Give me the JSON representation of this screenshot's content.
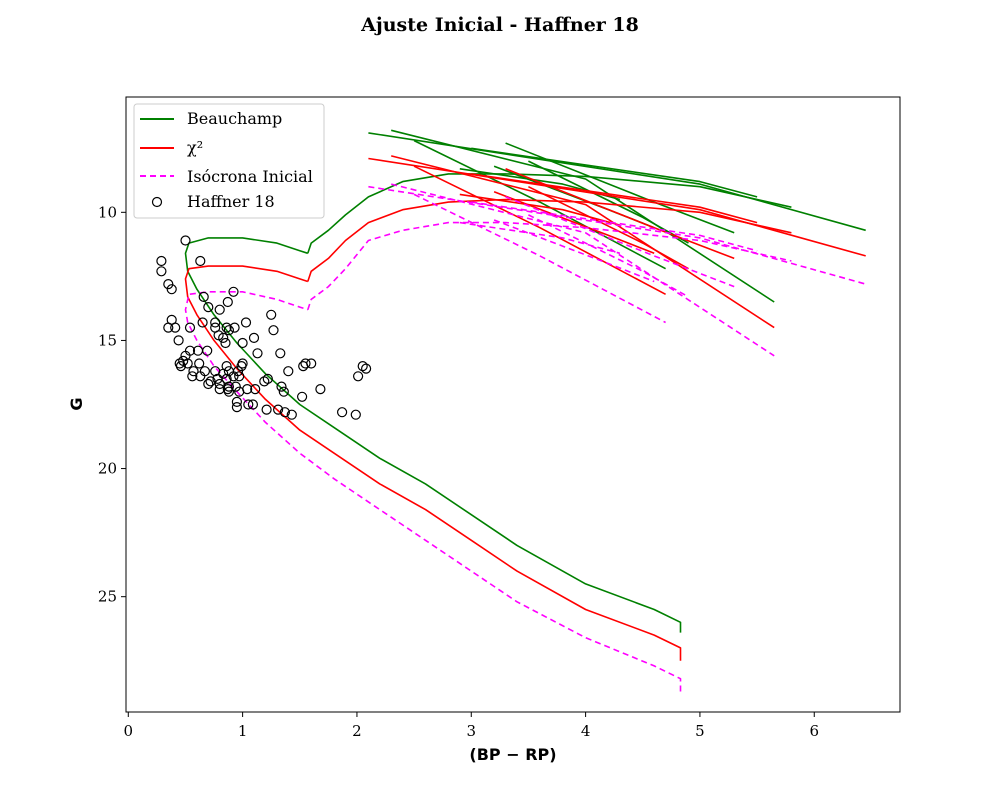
{
  "chart_data": {
    "type": "scatter",
    "title": "Ajuste Inicial - Haffner 18",
    "xlabel": "(BP − RP)",
    "ylabel": "G",
    "xlim": [
      -0.02,
      6.75
    ],
    "ylim": [
      29.5,
      5.5
    ],
    "y_inverted": true,
    "x_ticks": [
      "0",
      "1",
      "2",
      "3",
      "4",
      "5",
      "6"
    ],
    "y_ticks": [
      "10",
      "15",
      "20",
      "25"
    ],
    "grid": false,
    "legend_position": "upper-left",
    "legend": [
      "Beauchamp",
      "χ²",
      "Isócrona Inicial",
      "Haffner 18"
    ],
    "colors": {
      "beauchamp": "#008000",
      "chi2": "#ff0000",
      "inicial": "#ff00ff",
      "points": "#000000"
    },
    "series": [
      {
        "name": "Beauchamp",
        "style": "solid",
        "color": "#008000",
        "main_sequence": [
          [
            4.83,
            26.4
          ],
          [
            4.83,
            26.0
          ],
          [
            4.6,
            25.5
          ],
          [
            4.0,
            24.5
          ],
          [
            3.4,
            23.0
          ],
          [
            3.0,
            21.8
          ],
          [
            2.6,
            20.6
          ],
          [
            2.2,
            19.6
          ],
          [
            1.8,
            18.4
          ],
          [
            1.5,
            17.5
          ],
          [
            1.2,
            16.3
          ],
          [
            0.95,
            15.1
          ],
          [
            0.75,
            14.0
          ],
          [
            0.6,
            13.0
          ],
          [
            0.52,
            12.3
          ],
          [
            0.5,
            11.6
          ],
          [
            0.53,
            11.2
          ],
          [
            0.7,
            11.0
          ],
          [
            1.0,
            11.0
          ],
          [
            1.3,
            11.2
          ],
          [
            1.5,
            11.5
          ],
          [
            1.57,
            11.6
          ]
        ],
        "branch": [
          [
            1.57,
            11.6
          ],
          [
            1.6,
            11.2
          ],
          [
            1.75,
            10.7
          ],
          [
            1.9,
            10.1
          ],
          [
            2.1,
            9.4
          ],
          [
            2.4,
            8.8
          ],
          [
            2.8,
            8.5
          ],
          [
            3.3,
            8.5
          ],
          [
            4.0,
            8.6
          ],
          [
            5.0,
            9.0
          ],
          [
            5.8,
            9.8
          ]
        ],
        "extra_tracks": [
          [
            [
              2.1,
              6.9
            ],
            [
              5.0,
              8.9
            ],
            [
              6.45,
              10.7
            ]
          ],
          [
            [
              2.3,
              6.8
            ],
            [
              4.0,
              8.7
            ],
            [
              5.65,
              13.5
            ]
          ],
          [
            [
              2.5,
              7.2
            ],
            [
              3.6,
              9.6
            ],
            [
              4.7,
              12.2
            ]
          ],
          [
            [
              3.0,
              7.5
            ],
            [
              5.0,
              8.8
            ],
            [
              5.5,
              9.4
            ]
          ],
          [
            [
              3.3,
              7.3
            ],
            [
              4.6,
              9.6
            ],
            [
              5.3,
              10.8
            ]
          ],
          [
            [
              3.5,
              8.0
            ],
            [
              4.5,
              10.2
            ],
            [
              4.9,
              11.2
            ]
          ],
          [
            [
              3.2,
              8.2
            ],
            [
              4.2,
              9.9
            ],
            [
              4.6,
              10.6
            ]
          ],
          [
            [
              2.9,
              8.3
            ],
            [
              3.8,
              8.9
            ],
            [
              4.3,
              9.5
            ]
          ]
        ]
      },
      {
        "name": "χ²",
        "style": "solid",
        "color": "#ff0000",
        "main_sequence": [
          [
            4.83,
            27.5
          ],
          [
            4.83,
            27.0
          ],
          [
            4.6,
            26.5
          ],
          [
            4.0,
            25.5
          ],
          [
            3.4,
            24.0
          ],
          [
            3.0,
            22.8
          ],
          [
            2.6,
            21.6
          ],
          [
            2.2,
            20.6
          ],
          [
            1.8,
            19.4
          ],
          [
            1.5,
            18.5
          ],
          [
            1.2,
            17.3
          ],
          [
            0.95,
            16.1
          ],
          [
            0.75,
            15.0
          ],
          [
            0.6,
            14.0
          ],
          [
            0.52,
            13.3
          ],
          [
            0.5,
            12.6
          ],
          [
            0.53,
            12.2
          ],
          [
            0.7,
            12.1
          ],
          [
            1.0,
            12.1
          ],
          [
            1.3,
            12.3
          ],
          [
            1.5,
            12.6
          ],
          [
            1.57,
            12.7
          ]
        ],
        "branch": [
          [
            1.57,
            12.7
          ],
          [
            1.6,
            12.3
          ],
          [
            1.75,
            11.8
          ],
          [
            1.9,
            11.1
          ],
          [
            2.1,
            10.4
          ],
          [
            2.4,
            9.9
          ],
          [
            2.8,
            9.6
          ],
          [
            3.3,
            9.5
          ],
          [
            4.0,
            9.6
          ],
          [
            5.0,
            10.0
          ],
          [
            5.8,
            10.8
          ]
        ],
        "extra_tracks": [
          [
            [
              2.1,
              7.9
            ],
            [
              5.0,
              9.9
            ],
            [
              6.45,
              11.7
            ]
          ],
          [
            [
              2.3,
              7.8
            ],
            [
              4.0,
              9.7
            ],
            [
              5.65,
              14.5
            ]
          ],
          [
            [
              2.5,
              8.2
            ],
            [
              3.6,
              10.6
            ],
            [
              4.7,
              13.2
            ]
          ],
          [
            [
              3.0,
              8.5
            ],
            [
              5.0,
              9.8
            ],
            [
              5.5,
              10.4
            ]
          ],
          [
            [
              3.3,
              8.3
            ],
            [
              4.6,
              10.6
            ],
            [
              5.3,
              11.8
            ]
          ],
          [
            [
              3.5,
              9.0
            ],
            [
              4.5,
              11.2
            ],
            [
              4.9,
              12.2
            ]
          ],
          [
            [
              3.2,
              9.2
            ],
            [
              4.2,
              10.9
            ],
            [
              4.6,
              11.6
            ]
          ],
          [
            [
              2.9,
              9.3
            ],
            [
              3.8,
              9.9
            ],
            [
              4.3,
              10.5
            ]
          ]
        ]
      },
      {
        "name": "Isócrona Inicial",
        "style": "dashed",
        "color": "#ff00ff",
        "main_sequence": [
          [
            4.83,
            28.7
          ],
          [
            4.83,
            28.2
          ],
          [
            4.6,
            27.7
          ],
          [
            4.0,
            26.6
          ],
          [
            3.4,
            25.2
          ],
          [
            3.0,
            24.0
          ],
          [
            2.6,
            22.8
          ],
          [
            2.2,
            21.6
          ],
          [
            1.8,
            20.4
          ],
          [
            1.5,
            19.4
          ],
          [
            1.2,
            18.2
          ],
          [
            0.95,
            17.0
          ],
          [
            0.75,
            16.0
          ],
          [
            0.6,
            15.0
          ],
          [
            0.52,
            14.3
          ],
          [
            0.5,
            13.8
          ],
          [
            0.53,
            13.2
          ],
          [
            0.7,
            13.1
          ],
          [
            1.0,
            13.1
          ],
          [
            1.3,
            13.4
          ],
          [
            1.5,
            13.7
          ],
          [
            1.57,
            13.8
          ]
        ],
        "branch": [
          [
            1.57,
            13.8
          ],
          [
            1.6,
            13.4
          ],
          [
            1.75,
            12.9
          ],
          [
            1.9,
            12.2
          ],
          [
            2.1,
            11.1
          ],
          [
            2.4,
            10.7
          ],
          [
            2.8,
            10.4
          ],
          [
            3.3,
            10.4
          ],
          [
            4.0,
            10.6
          ],
          [
            5.0,
            11.1
          ],
          [
            5.8,
            11.9
          ]
        ],
        "extra_tracks": [
          [
            [
              2.1,
              9.0
            ],
            [
              5.0,
              11.0
            ],
            [
              6.45,
              12.8
            ]
          ],
          [
            [
              2.3,
              8.9
            ],
            [
              4.0,
              10.8
            ],
            [
              5.65,
              15.6
            ]
          ],
          [
            [
              2.5,
              9.3
            ],
            [
              3.6,
              11.7
            ],
            [
              4.7,
              14.3
            ]
          ],
          [
            [
              3.0,
              9.6
            ],
            [
              5.0,
              10.9
            ],
            [
              5.5,
              11.5
            ]
          ],
          [
            [
              3.3,
              9.4
            ],
            [
              4.6,
              11.7
            ],
            [
              5.3,
              12.9
            ]
          ],
          [
            [
              3.5,
              10.1
            ],
            [
              4.5,
              12.3
            ],
            [
              4.9,
              13.3
            ]
          ],
          [
            [
              3.2,
              10.3
            ],
            [
              4.2,
              12.0
            ],
            [
              4.6,
              12.7
            ]
          ],
          [
            [
              2.9,
              10.4
            ],
            [
              3.8,
              11.0
            ],
            [
              4.3,
              11.6
            ]
          ]
        ]
      }
    ],
    "points_name": "Haffner 18",
    "points": [
      [
        0.5,
        11.1
      ],
      [
        0.63,
        11.9
      ],
      [
        0.29,
        11.9
      ],
      [
        0.29,
        12.3
      ],
      [
        0.35,
        12.8
      ],
      [
        0.38,
        13.0
      ],
      [
        0.92,
        13.1
      ],
      [
        0.66,
        13.3
      ],
      [
        0.87,
        13.5
      ],
      [
        0.7,
        13.7
      ],
      [
        0.8,
        13.8
      ],
      [
        1.25,
        14.0
      ],
      [
        0.38,
        14.2
      ],
      [
        0.35,
        14.5
      ],
      [
        0.41,
        14.5
      ],
      [
        0.54,
        14.5
      ],
      [
        0.65,
        14.3
      ],
      [
        0.76,
        14.3
      ],
      [
        0.76,
        14.5
      ],
      [
        0.86,
        14.5
      ],
      [
        0.88,
        14.6
      ],
      [
        0.93,
        14.5
      ],
      [
        1.03,
        14.3
      ],
      [
        1.27,
        14.6
      ],
      [
        0.79,
        14.8
      ],
      [
        0.83,
        14.9
      ],
      [
        0.85,
        15.1
      ],
      [
        1.1,
        14.9
      ],
      [
        0.44,
        15.0
      ],
      [
        1.0,
        15.1
      ],
      [
        0.69,
        15.4
      ],
      [
        0.61,
        15.4
      ],
      [
        0.54,
        15.4
      ],
      [
        0.5,
        15.6
      ],
      [
        1.13,
        15.5
      ],
      [
        1.33,
        15.5
      ],
      [
        0.48,
        15.8
      ],
      [
        0.45,
        15.9
      ],
      [
        0.52,
        15.9
      ],
      [
        0.62,
        15.9
      ],
      [
        0.86,
        16.0
      ],
      [
        0.99,
        16.0
      ],
      [
        1.0,
        15.9
      ],
      [
        1.55,
        15.9
      ],
      [
        1.6,
        15.9
      ],
      [
        1.53,
        16.0
      ],
      [
        0.46,
        16.0
      ],
      [
        2.05,
        16.0
      ],
      [
        2.08,
        16.1
      ],
      [
        0.57,
        16.2
      ],
      [
        0.67,
        16.2
      ],
      [
        0.76,
        16.2
      ],
      [
        0.83,
        16.3
      ],
      [
        0.88,
        16.2
      ],
      [
        0.96,
        16.2
      ],
      [
        1.4,
        16.2
      ],
      [
        2.01,
        16.4
      ],
      [
        0.56,
        16.4
      ],
      [
        0.63,
        16.4
      ],
      [
        0.72,
        16.6
      ],
      [
        0.78,
        16.5
      ],
      [
        0.86,
        16.5
      ],
      [
        0.92,
        16.4
      ],
      [
        0.97,
        16.4
      ],
      [
        1.22,
        16.5
      ],
      [
        1.19,
        16.6
      ],
      [
        0.7,
        16.7
      ],
      [
        0.8,
        16.7
      ],
      [
        0.88,
        16.8
      ],
      [
        0.87,
        16.9
      ],
      [
        0.94,
        16.8
      ],
      [
        1.04,
        16.9
      ],
      [
        1.11,
        16.9
      ],
      [
        1.34,
        16.8
      ],
      [
        0.8,
        16.9
      ],
      [
        0.88,
        17.0
      ],
      [
        0.97,
        17.0
      ],
      [
        1.36,
        17.0
      ],
      [
        1.68,
        16.9
      ],
      [
        0.95,
        17.4
      ],
      [
        1.05,
        17.5
      ],
      [
        1.09,
        17.5
      ],
      [
        1.52,
        17.2
      ],
      [
        0.95,
        17.6
      ],
      [
        1.21,
        17.7
      ],
      [
        1.31,
        17.7
      ],
      [
        1.37,
        17.8
      ],
      [
        1.43,
        17.9
      ],
      [
        1.87,
        17.8
      ],
      [
        1.99,
        17.9
      ]
    ]
  }
}
